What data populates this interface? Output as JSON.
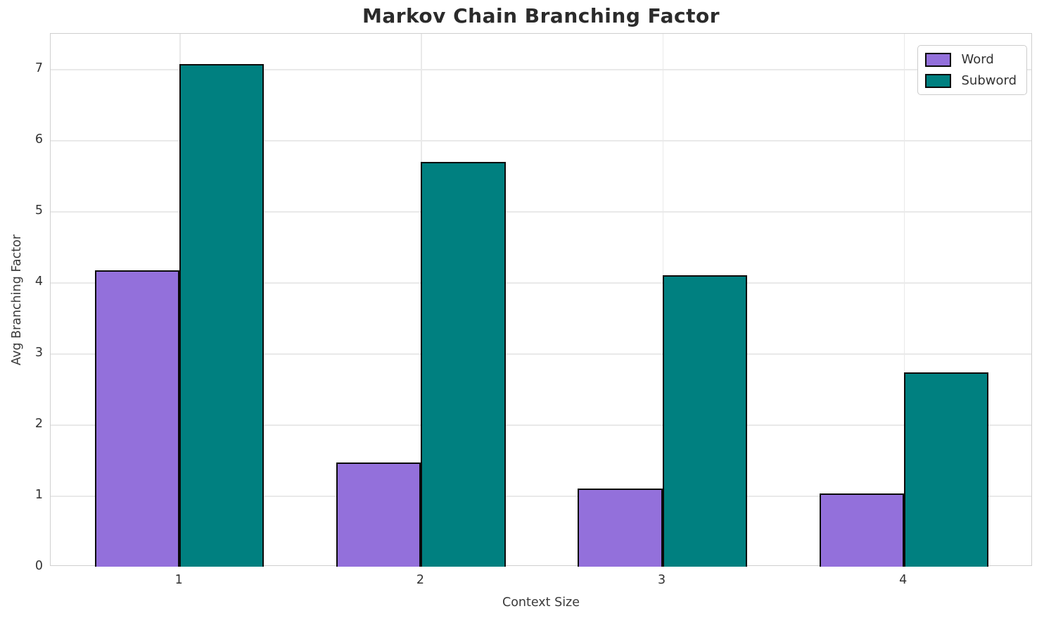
{
  "chart_data": {
    "type": "bar",
    "title": "Markov Chain Branching Factor",
    "xlabel": "Context Size",
    "ylabel": "Avg Branching Factor",
    "categories": [
      "1",
      "2",
      "3",
      "4"
    ],
    "series": [
      {
        "name": "Word",
        "color": "#9370DB",
        "values": [
          4.17,
          1.47,
          1.1,
          1.03
        ]
      },
      {
        "name": "Subword",
        "color": "#008080",
        "values": [
          7.07,
          5.7,
          4.1,
          2.73
        ]
      }
    ],
    "bar_edge_color": "#0a0a0a",
    "bar_width": 0.35,
    "xlim": [
      0.466,
      4.534
    ],
    "ylim": [
      0,
      7.5
    ],
    "yticks": [
      0,
      1,
      2,
      3,
      4,
      5,
      6,
      7
    ],
    "grid": true,
    "grid_color": "#e9e9e9",
    "legend_position": "upper right"
  }
}
